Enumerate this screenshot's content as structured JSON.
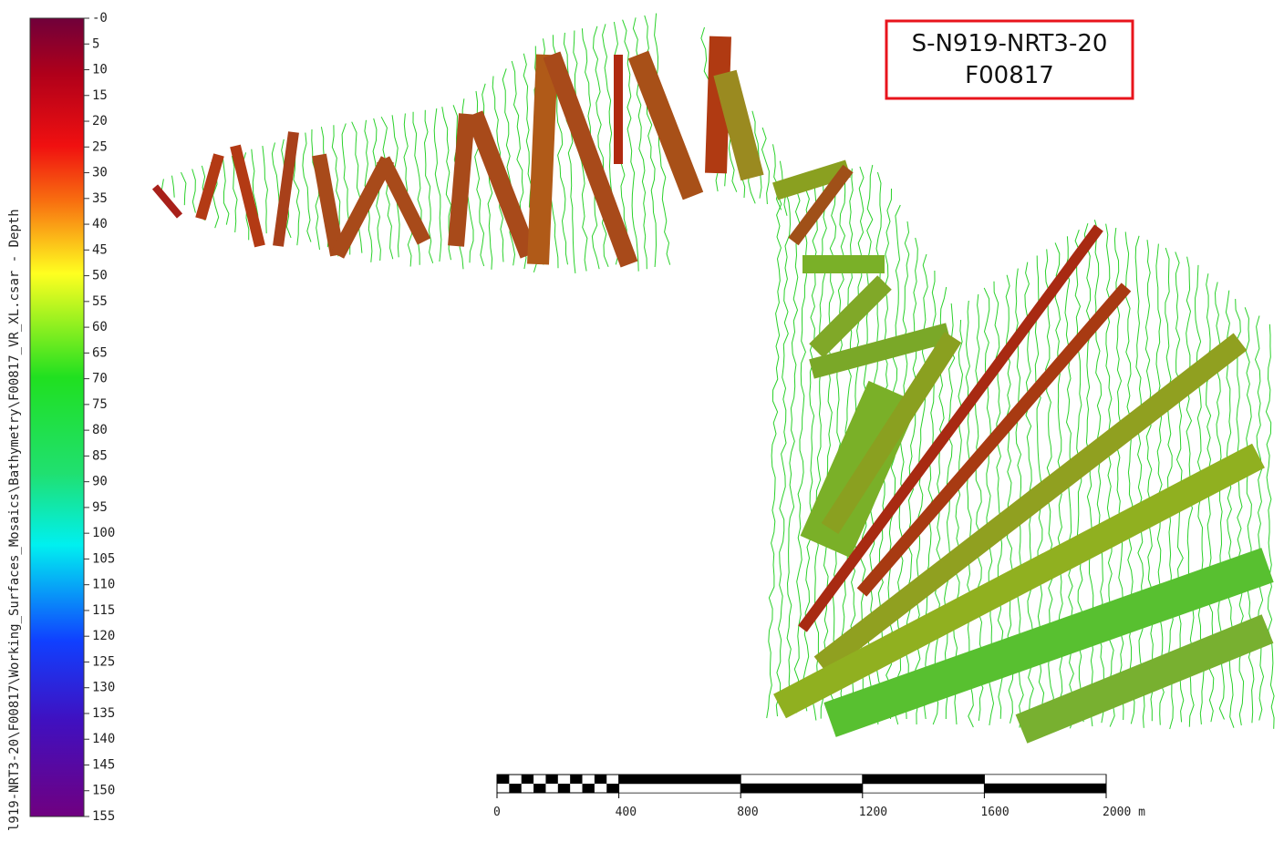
{
  "colorbar": {
    "label": "l919-NRT3-20\\F00817\\Working_Surfaces_Mosaics\\Bathymetry\\F00817_VR_XL.csar - Depth",
    "ticks": [
      {
        "value": 0,
        "label": "-0"
      },
      5,
      10,
      15,
      20,
      25,
      30,
      35,
      40,
      45,
      50,
      55,
      60,
      65,
      70,
      75,
      80,
      85,
      90,
      95,
      100,
      105,
      110,
      115,
      120,
      125,
      130,
      135,
      140,
      145,
      150,
      155
    ]
  },
  "title_box": {
    "line1": "S-N919-NRT3-20",
    "line2": "F00817"
  },
  "scale_bar": {
    "ticks": [
      0,
      400,
      800,
      1200,
      1600,
      {
        "value": 2000,
        "label": "2000 m"
      }
    ]
  }
}
